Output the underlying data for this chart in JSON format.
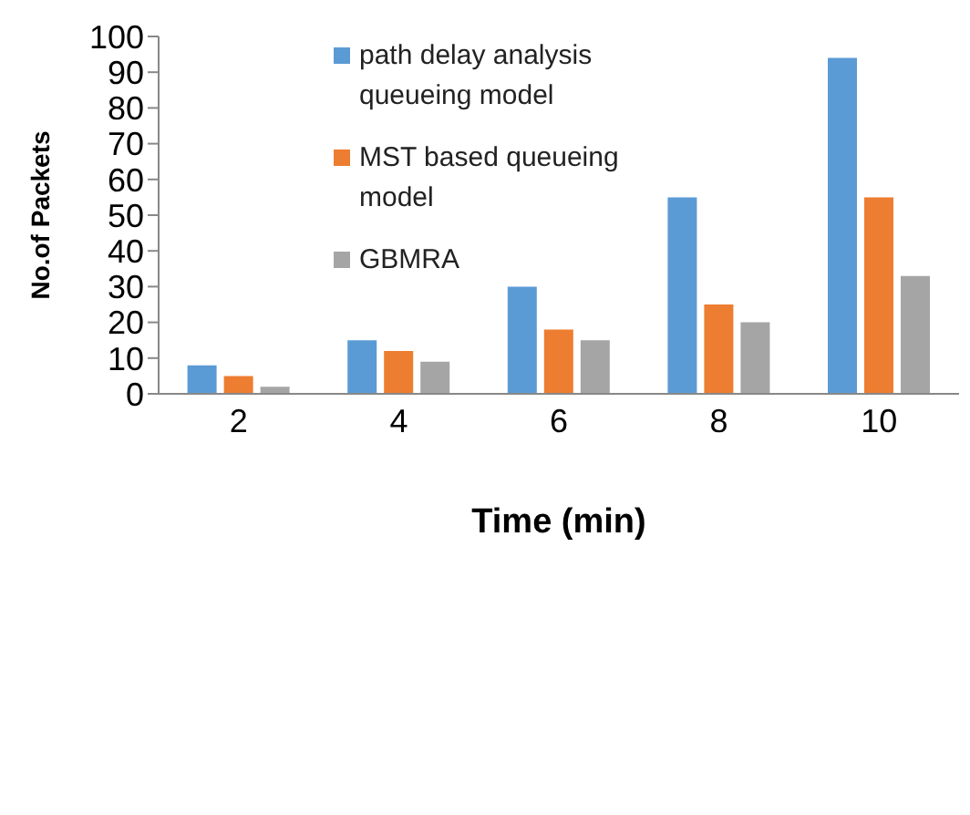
{
  "chart_data": {
    "type": "bar",
    "xlabel": "Time (min)",
    "ylabel": "No.of Packets",
    "categories": [
      "2",
      "4",
      "6",
      "8",
      "10"
    ],
    "series": [
      {
        "name": "path delay analysis queueing model",
        "color": "#5b9bd5",
        "values": [
          8,
          15,
          30,
          55,
          94
        ]
      },
      {
        "name": "MST based queueing model",
        "color": "#ed7d31",
        "values": [
          5,
          12,
          18,
          25,
          55
        ]
      },
      {
        "name": "GBMRA",
        "color": "#a5a5a5",
        "values": [
          2,
          9,
          15,
          20,
          33
        ]
      }
    ],
    "ylim": [
      0,
      100
    ],
    "yticks": [
      0,
      10,
      20,
      30,
      40,
      50,
      60,
      70,
      80,
      90,
      100
    ],
    "grid": false,
    "legend": "top left"
  }
}
